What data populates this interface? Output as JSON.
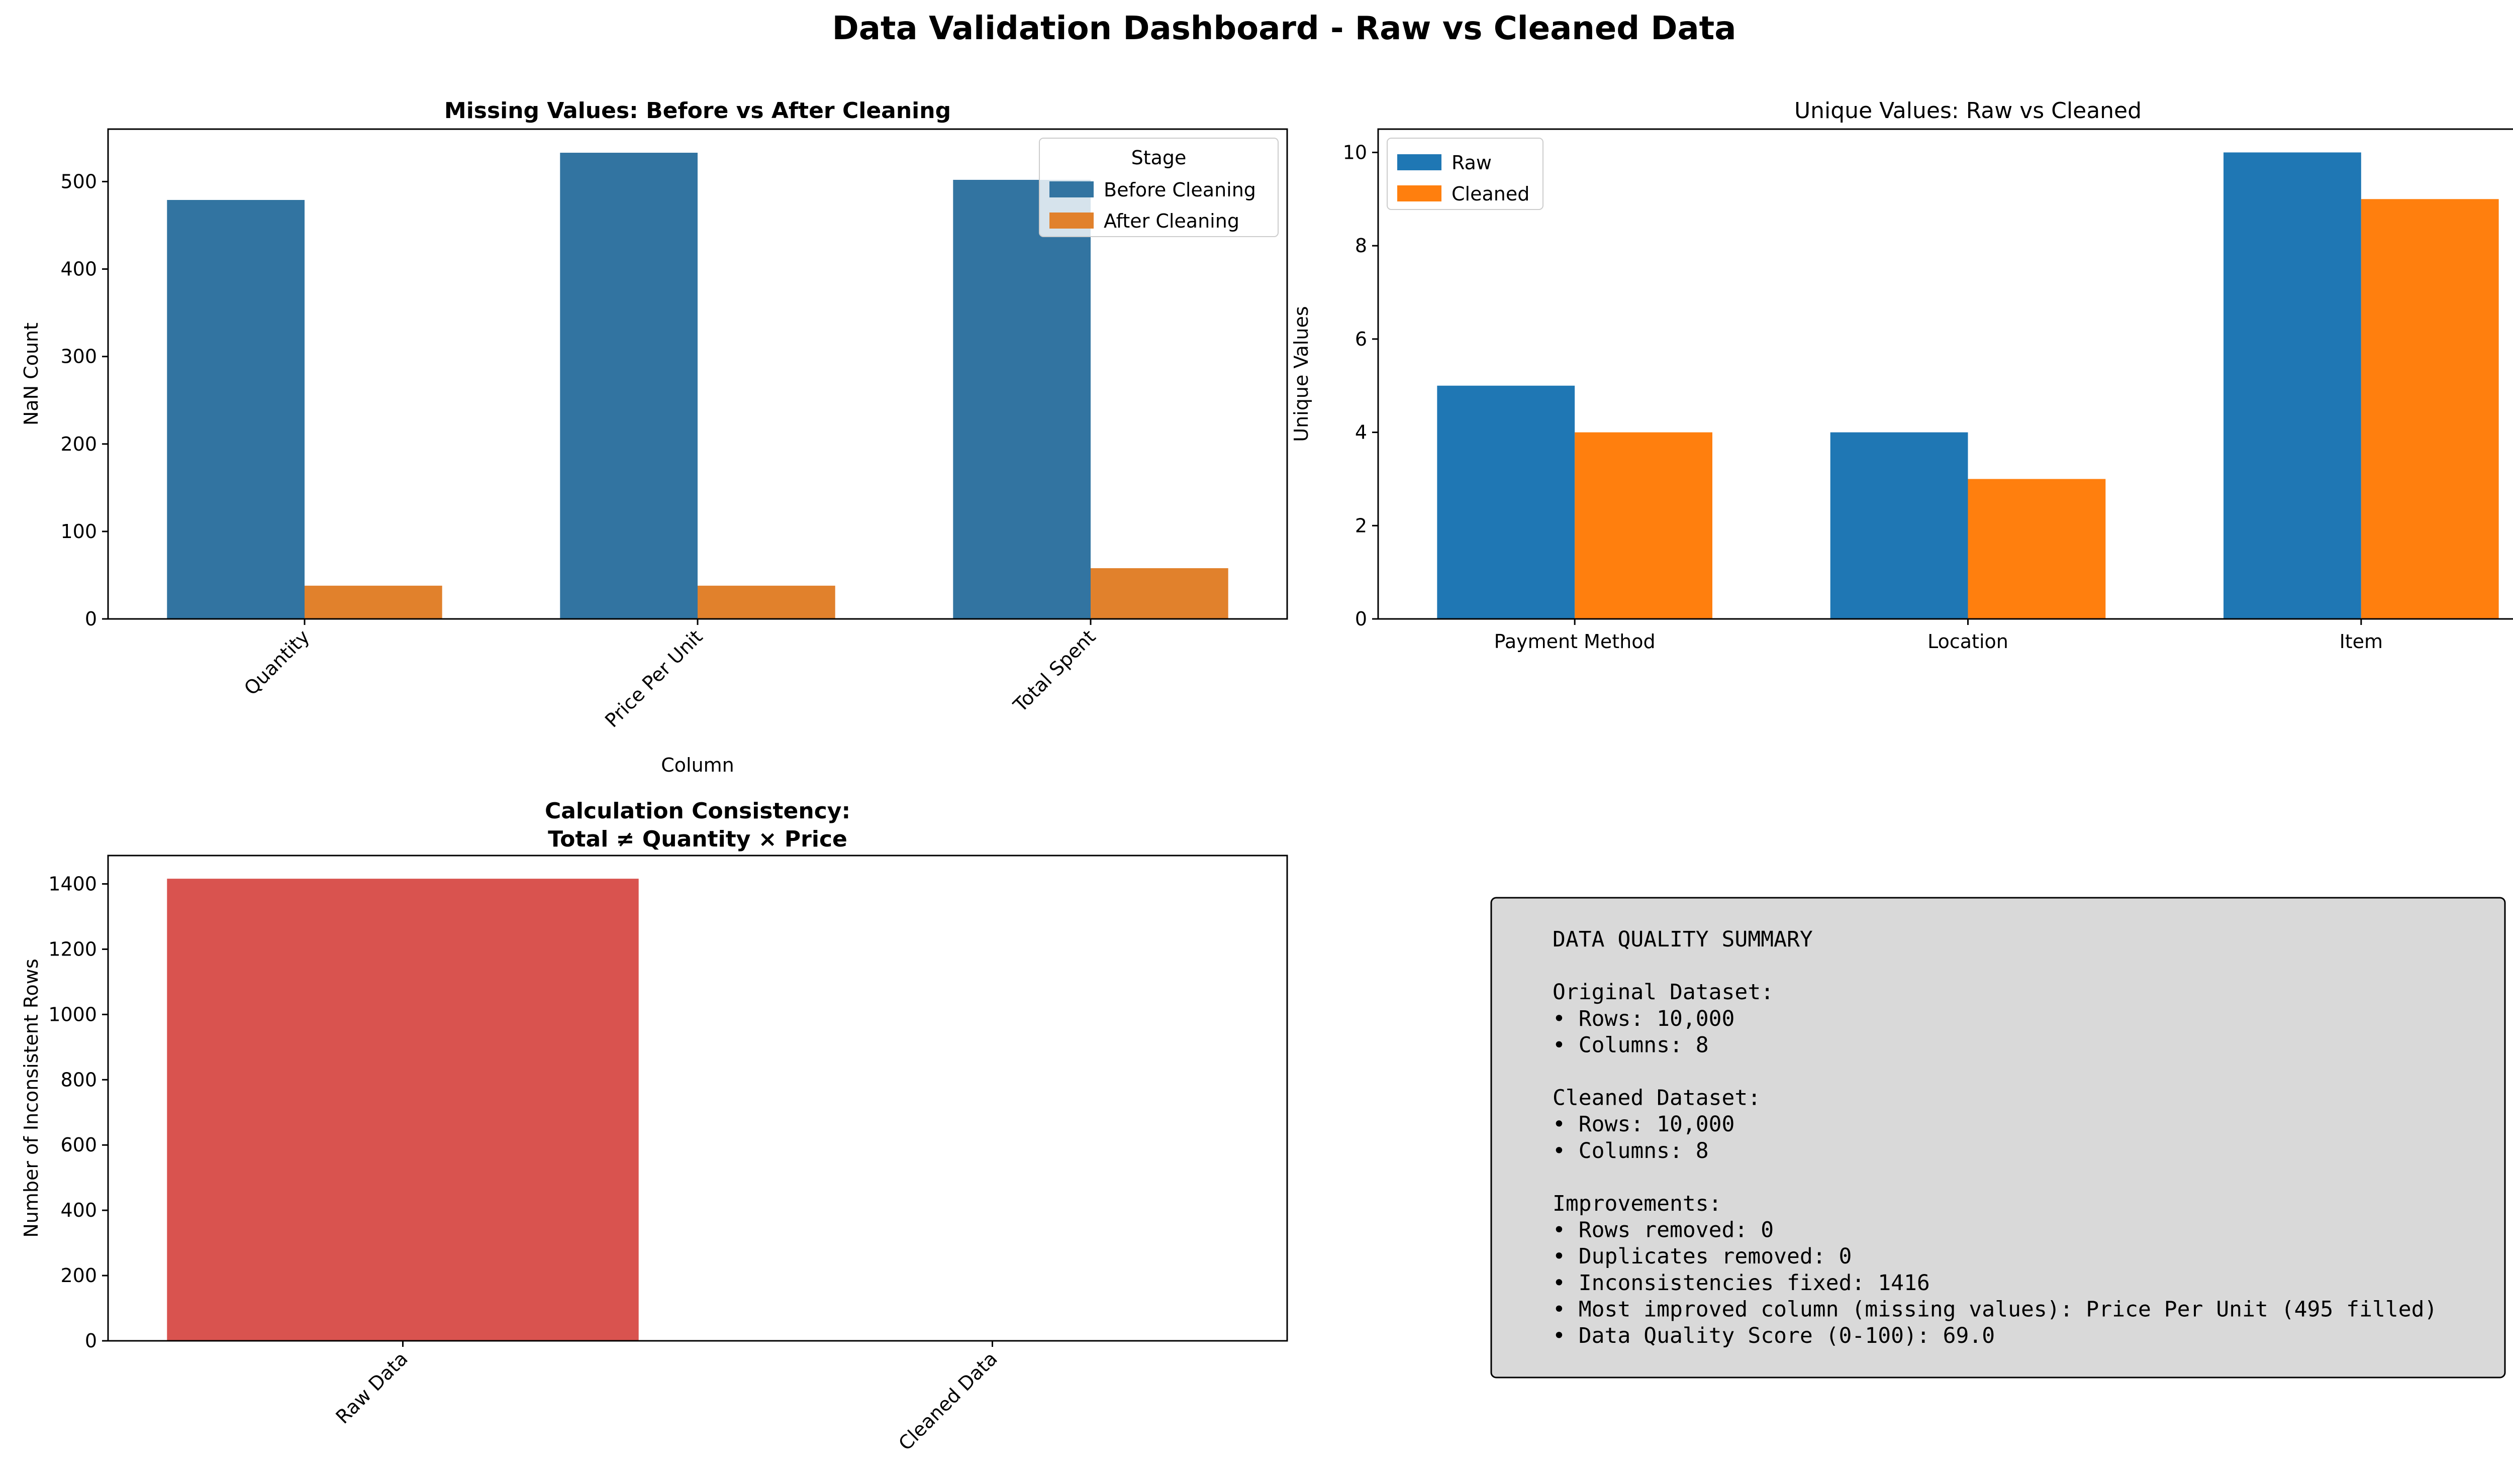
{
  "suptitle": "Data Validation Dashboard - Raw vs Cleaned Data",
  "chart_data": [
    {
      "type": "bar",
      "title": "Missing Values: Before vs After Cleaning",
      "xlabel": "Column",
      "ylabel": "NaN Count",
      "categories": [
        "Quantity",
        "Price Per Unit",
        "Total Spent"
      ],
      "series": [
        {
          "name": "Before Cleaning",
          "values": [
            479,
            533,
            502
          ],
          "color": "#3274a1"
        },
        {
          "name": "After Cleaning",
          "values": [
            38,
            38,
            58
          ],
          "color": "#e1812c"
        }
      ],
      "ylim": [
        0,
        560
      ],
      "yticks": [
        0,
        100,
        200,
        300,
        400,
        500
      ],
      "legend_title": "Stage",
      "legend_position": "top-right",
      "xtick_rotation": 45,
      "grid": false
    },
    {
      "type": "bar",
      "title": "Unique Values: Raw vs Cleaned",
      "xlabel": "",
      "ylabel": "Unique Values",
      "categories": [
        "Payment Method",
        "Location",
        "Item"
      ],
      "series": [
        {
          "name": "Raw",
          "values": [
            5,
            4,
            10
          ],
          "color": "#1f77b4"
        },
        {
          "name": "Cleaned",
          "values": [
            4,
            3,
            9
          ],
          "color": "#ff7f0e"
        }
      ],
      "ylim": [
        0,
        10.5
      ],
      "yticks": [
        0,
        2,
        4,
        6,
        8,
        10
      ],
      "legend_position": "top-left",
      "grid": false
    },
    {
      "type": "bar",
      "title": "Calculation Consistency:\nTotal ≠ Quantity × Price",
      "xlabel": "",
      "ylabel": "Number of Inconsistent Rows",
      "categories": [
        "Raw Data",
        "Cleaned Data"
      ],
      "values": [
        1416,
        0
      ],
      "colors": [
        "#d9534f",
        "#5cb85c"
      ],
      "ylim": [
        0,
        1487
      ],
      "yticks": [
        0,
        200,
        400,
        600,
        800,
        1000,
        1200,
        1400
      ],
      "xtick_rotation": 45,
      "grid": false
    }
  ],
  "summary": {
    "lines": [
      "DATA QUALITY SUMMARY",
      "",
      "Original Dataset:",
      "• Rows: 10,000",
      "• Columns: 8",
      "",
      "Cleaned Dataset:",
      "• Rows: 10,000",
      "• Columns: 8",
      "",
      "Improvements:",
      "• Rows removed: 0",
      "• Duplicates removed: 0",
      "• Inconsistencies fixed: 1416",
      "• Most improved column (missing values): Price Per Unit (495 filled)",
      "• Data Quality Score (0-100): 69.0"
    ],
    "box_color": "#d9d9d9"
  }
}
